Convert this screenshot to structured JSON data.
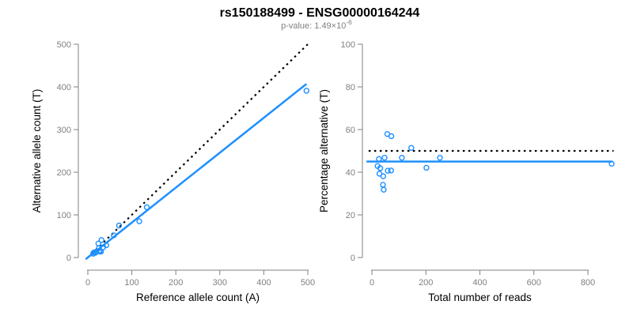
{
  "header": {
    "title": "rs150188499 - ENSG00000164244",
    "subtitle_prefix": "p-value: 1.49×10",
    "subtitle_exponent": "-6"
  },
  "colors": {
    "accent_blue": "#1E90FF",
    "axis_gray": "#808080",
    "text_black": "#000000",
    "dotted_black": "#000000"
  },
  "chart_data": [
    {
      "type": "scatter",
      "name": "allele-counts-panel",
      "xlabel": "Reference allele count (A)",
      "ylabel": "Alternative allele count (T)",
      "xlim": [
        0,
        500
      ],
      "ylim": [
        0,
        500
      ],
      "xticks": [
        0,
        100,
        200,
        300,
        400,
        500
      ],
      "yticks": [
        0,
        100,
        200,
        300,
        400,
        500
      ],
      "grid": false,
      "legend": null,
      "marker": "open-circle",
      "lines": [
        {
          "name": "identity",
          "style": "dotted",
          "color": "#000000",
          "from": [
            0,
            0
          ],
          "to": [
            500,
            500
          ]
        },
        {
          "name": "fit",
          "style": "solid",
          "color": "#1E90FF",
          "from": [
            -5,
            -4
          ],
          "to": [
            497,
            407
          ]
        }
      ],
      "points": [
        [
          24,
          33
        ],
        [
          31,
          41
        ],
        [
          71,
          75
        ],
        [
          14,
          12
        ],
        [
          25,
          22
        ],
        [
          59,
          52
        ],
        [
          134,
          118
        ],
        [
          12,
          9
        ],
        [
          18,
          13
        ],
        [
          17,
          11
        ],
        [
          26,
          16
        ],
        [
          35,
          24
        ],
        [
          42,
          29
        ],
        [
          117,
          85
        ],
        [
          27,
          14
        ],
        [
          30,
          14
        ],
        [
          497,
          391
        ]
      ]
    },
    {
      "type": "scatter",
      "name": "percentage-panel",
      "xlabel": "Total number of reads",
      "ylabel": "Percentage alternative (T)",
      "xlim": [
        0,
        800
      ],
      "ylim": [
        0,
        100
      ],
      "xticks": [
        0,
        200,
        400,
        600,
        800
      ],
      "yticks": [
        0,
        20,
        40,
        60,
        80,
        100
      ],
      "grid": false,
      "legend": null,
      "marker": "open-circle",
      "lines": [
        {
          "name": "expected-50pct",
          "style": "dotted",
          "color": "#000000",
          "from": [
            -12,
            50
          ],
          "to": [
            895,
            50
          ]
        },
        {
          "name": "mean-percentage",
          "style": "solid",
          "color": "#1E90FF",
          "from": [
            -20,
            45
          ],
          "to": [
            890,
            45
          ]
        }
      ],
      "points": [
        [
          57,
          57.9
        ],
        [
          72,
          56.9
        ],
        [
          146,
          51.4
        ],
        [
          26,
          46.2
        ],
        [
          47,
          46.8
        ],
        [
          111,
          46.8
        ],
        [
          252,
          46.8
        ],
        [
          21,
          42.9
        ],
        [
          31,
          41.9
        ],
        [
          28,
          39.3
        ],
        [
          42,
          38.1
        ],
        [
          59,
          40.7
        ],
        [
          71,
          40.8
        ],
        [
          202,
          42.1
        ],
        [
          41,
          34.1
        ],
        [
          44,
          31.8
        ],
        [
          888,
          44.0
        ]
      ]
    }
  ]
}
